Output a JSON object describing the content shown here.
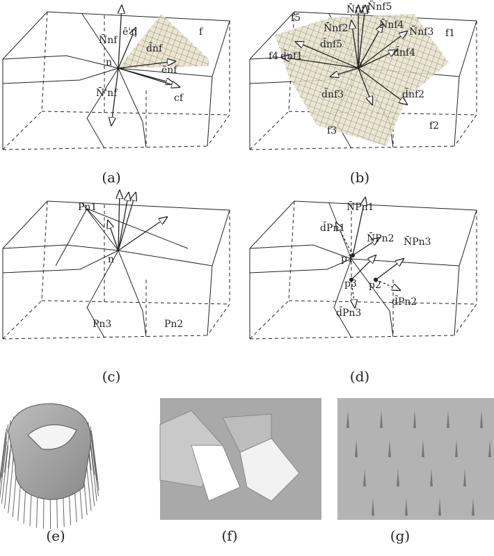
{
  "panels": [
    {
      "caption": "(a)",
      "labels": [
        "N̄nf",
        "ē'n",
        "f",
        "n",
        "d̄nf",
        "ēnf",
        "N̄'nf",
        "cf"
      ]
    },
    {
      "caption": "(b)",
      "labels": [
        "N̄nf1",
        "N̄nf5",
        "N̄nf2",
        "N̄nf4",
        "N̄nf3",
        "f5",
        "f1",
        "f4",
        "d̄nf5",
        "d̄nf1",
        "d̄nf4",
        "n",
        "d̄nf3",
        "d̄nf2",
        "f3",
        "f2"
      ]
    },
    {
      "caption": "(c)",
      "labels": [
        "Pn1",
        "n",
        "Pn3",
        "Pn2"
      ]
    },
    {
      "caption": "(d)",
      "labels": [
        "N̄Pn1",
        "d̄Pn1",
        "N̄Pn2",
        "N̄Pn3",
        "p1",
        "p3",
        "p2",
        "d̄Pn2",
        "d̄Pn3"
      ]
    },
    {
      "caption": "(e)",
      "labels": []
    },
    {
      "caption": "(f)",
      "labels": []
    },
    {
      "caption": "(g)",
      "labels": []
    }
  ]
}
